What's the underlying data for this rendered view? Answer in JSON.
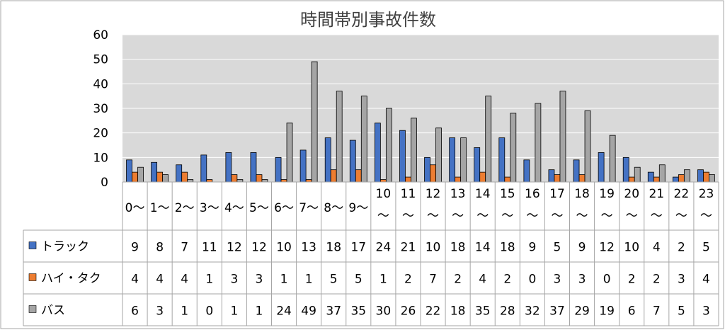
{
  "chart_data": {
    "type": "bar",
    "title": "時間帯別事故件数",
    "ylim": [
      0,
      60
    ],
    "yticks": [
      "0",
      "10",
      "20",
      "30",
      "40",
      "50",
      "60"
    ],
    "categories": [
      "0〜",
      "1〜",
      "2〜",
      "3〜",
      "4〜",
      "5〜",
      "6〜",
      "7〜",
      "8〜",
      "9〜",
      "10〜",
      "11〜",
      "12〜",
      "13〜",
      "14〜",
      "15〜",
      "16〜",
      "17〜",
      "18〜",
      "19〜",
      "20〜",
      "21〜",
      "22〜",
      "23〜"
    ],
    "series": [
      {
        "name": "トラック",
        "color": "#4472c4",
        "values": [
          9,
          8,
          7,
          11,
          12,
          12,
          10,
          13,
          18,
          17,
          24,
          21,
          10,
          18,
          14,
          18,
          9,
          5,
          9,
          12,
          10,
          4,
          2,
          5
        ]
      },
      {
        "name": "ハイ・タク",
        "color": "#ed7d31",
        "values": [
          4,
          4,
          4,
          1,
          3,
          3,
          1,
          1,
          5,
          5,
          1,
          2,
          7,
          2,
          4,
          2,
          0,
          3,
          3,
          0,
          2,
          2,
          3,
          4
        ]
      },
      {
        "name": "バス",
        "color": "#a5a5a5",
        "values": [
          6,
          3,
          1,
          0,
          1,
          1,
          24,
          49,
          37,
          35,
          30,
          26,
          22,
          18,
          35,
          28,
          32,
          37,
          29,
          19,
          6,
          7,
          5,
          3
        ]
      }
    ],
    "grid": true,
    "legend": "data-table"
  }
}
